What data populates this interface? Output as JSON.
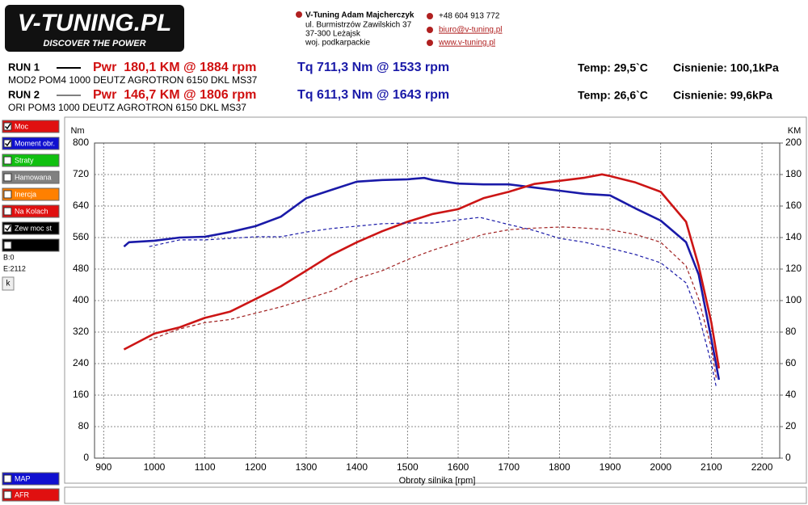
{
  "header": {
    "logo": "V-TUNING.PL",
    "slogan": "DISCOVER THE POWER",
    "company": "V-Tuning Adam Majcherczyk",
    "address": [
      "ul. Burmistrzów Zawilskich 37",
      "37-300 Leżajsk",
      "woj. podkarpackie"
    ],
    "phone": "+48 604 913 772",
    "email": "biuro@v-tuning.pl",
    "web": "www.v-tuning.pl"
  },
  "runs": [
    {
      "label": "RUN 1",
      "power": "Pwr  180,1 KM @ 1884 rpm",
      "torque": "Tq 711,3 Nm @ 1533 rpm",
      "temp": "Temp: 29,5`C",
      "pressure": "Cisnienie: 100,1kPa",
      "description": "MOD2 POM4 1000 DEUTZ AGROTRON 6150 DKL MS37"
    },
    {
      "label": "RUN 2",
      "power": "Pwr  146,7 KM @ 1806 rpm",
      "torque": "Tq 611,3 Nm @ 1643 rpm",
      "temp": "Temp: 26,6`C",
      "pressure": "Cisnienie: 99,6kPa",
      "description": "ORI POM3 1000 DEUTZ AGROTRON 6150 DKL MS37"
    }
  ],
  "sidebar": {
    "items": [
      {
        "label": "Moc",
        "checked": true,
        "color": "#e01010"
      },
      {
        "label": "Moment obr.",
        "checked": true,
        "color": "#1010d0"
      },
      {
        "label": "Straty",
        "checked": false,
        "color": "#10c010"
      },
      {
        "label": "Hamowana",
        "checked": false,
        "color": "#808080"
      },
      {
        "label": "Inercja",
        "checked": false,
        "color": "#ff8000"
      },
      {
        "label": "Na Kolach",
        "checked": false,
        "color": "#e01010"
      },
      {
        "label": "Zew moc st",
        "checked": true,
        "color": "#000000"
      },
      {
        "label": null,
        "checked": false,
        "color": "#000000"
      }
    ],
    "begin": "B:0",
    "end": "E:2112",
    "button": "k",
    "bottom": [
      {
        "label": "MAP",
        "checked": false,
        "color": "#1010d0"
      },
      {
        "label": "AFR",
        "checked": false,
        "color": "#e01010"
      }
    ]
  },
  "chart_data": {
    "type": "line",
    "ylabel": "Nm",
    "y2label": "KM",
    "xlabel": "Obroty silnika [rpm]",
    "xlim": [
      882,
      2235
    ],
    "xticks": [
      900,
      1000,
      1100,
      1200,
      1300,
      1400,
      1500,
      1600,
      1700,
      1800,
      1900,
      2000,
      2100,
      2200
    ],
    "ylim": [
      0,
      800
    ],
    "yticks": [
      0,
      80,
      160,
      240,
      320,
      400,
      480,
      560,
      640,
      720,
      800
    ],
    "y2lim": [
      0,
      200
    ],
    "y2ticks": [
      0,
      20,
      40,
      60,
      80,
      100,
      120,
      140,
      160,
      180,
      200
    ],
    "grid": true,
    "series": [
      {
        "color": "#1a1aa8",
        "dashed": false,
        "x": [
          940,
          950,
          1000,
          1050,
          1100,
          1150,
          1200,
          1250,
          1300,
          1350,
          1400,
          1450,
          1500,
          1533,
          1550,
          1600,
          1650,
          1700,
          1750,
          1800,
          1850,
          1900,
          1950,
          2000,
          2050,
          2075,
          2100,
          2115
        ],
        "values": [
          537,
          548,
          552,
          560,
          562,
          574,
          589,
          613,
          660,
          681,
          702,
          706,
          708,
          711.3,
          706,
          697,
          695,
          695,
          687,
          679,
          671,
          667,
          634,
          603,
          548,
          466,
          302,
          199
        ]
      },
      {
        "color": "#cc1515",
        "dashed": false,
        "axis": "y2",
        "x": [
          940,
          1000,
          1050,
          1100,
          1150,
          1200,
          1250,
          1300,
          1350,
          1400,
          1450,
          1500,
          1550,
          1600,
          1650,
          1700,
          1750,
          1800,
          1850,
          1884,
          1900,
          1950,
          2000,
          2050,
          2075,
          2100,
          2115
        ],
        "values": [
          69,
          79,
          83,
          89,
          93,
          101,
          109,
          119,
          129,
          137,
          144,
          150,
          155,
          158,
          165,
          169,
          174,
          176,
          178,
          180.1,
          179,
          175,
          169,
          150,
          122,
          86,
          57
        ]
      },
      {
        "color": "#1a1aa8",
        "dashed": true,
        "x": [
          990,
          1050,
          1100,
          1150,
          1200,
          1250,
          1300,
          1350,
          1400,
          1450,
          1500,
          1550,
          1600,
          1643,
          1700,
          1750,
          1800,
          1850,
          1900,
          1950,
          2000,
          2050,
          2075,
          2100,
          2110
        ],
        "values": [
          537,
          554,
          554,
          558,
          562,
          562,
          574,
          583,
          589,
          595,
          597,
          597,
          605,
          611.3,
          593,
          578,
          558,
          548,
          533,
          517,
          496,
          445,
          363,
          240,
          178
        ]
      },
      {
        "color": "#a02020",
        "dashed": true,
        "axis": "y2",
        "x": [
          990,
          1050,
          1100,
          1150,
          1200,
          1250,
          1300,
          1350,
          1400,
          1450,
          1500,
          1550,
          1600,
          1650,
          1700,
          1750,
          1806,
          1850,
          1900,
          1950,
          2000,
          2050,
          2075,
          2100,
          2110
        ],
        "values": [
          75,
          82,
          86,
          88,
          92,
          96,
          101,
          106,
          114,
          119,
          126,
          132,
          137,
          142,
          145,
          146,
          146.7,
          146,
          145,
          142,
          137,
          122,
          101,
          70,
          50
        ]
      }
    ]
  }
}
